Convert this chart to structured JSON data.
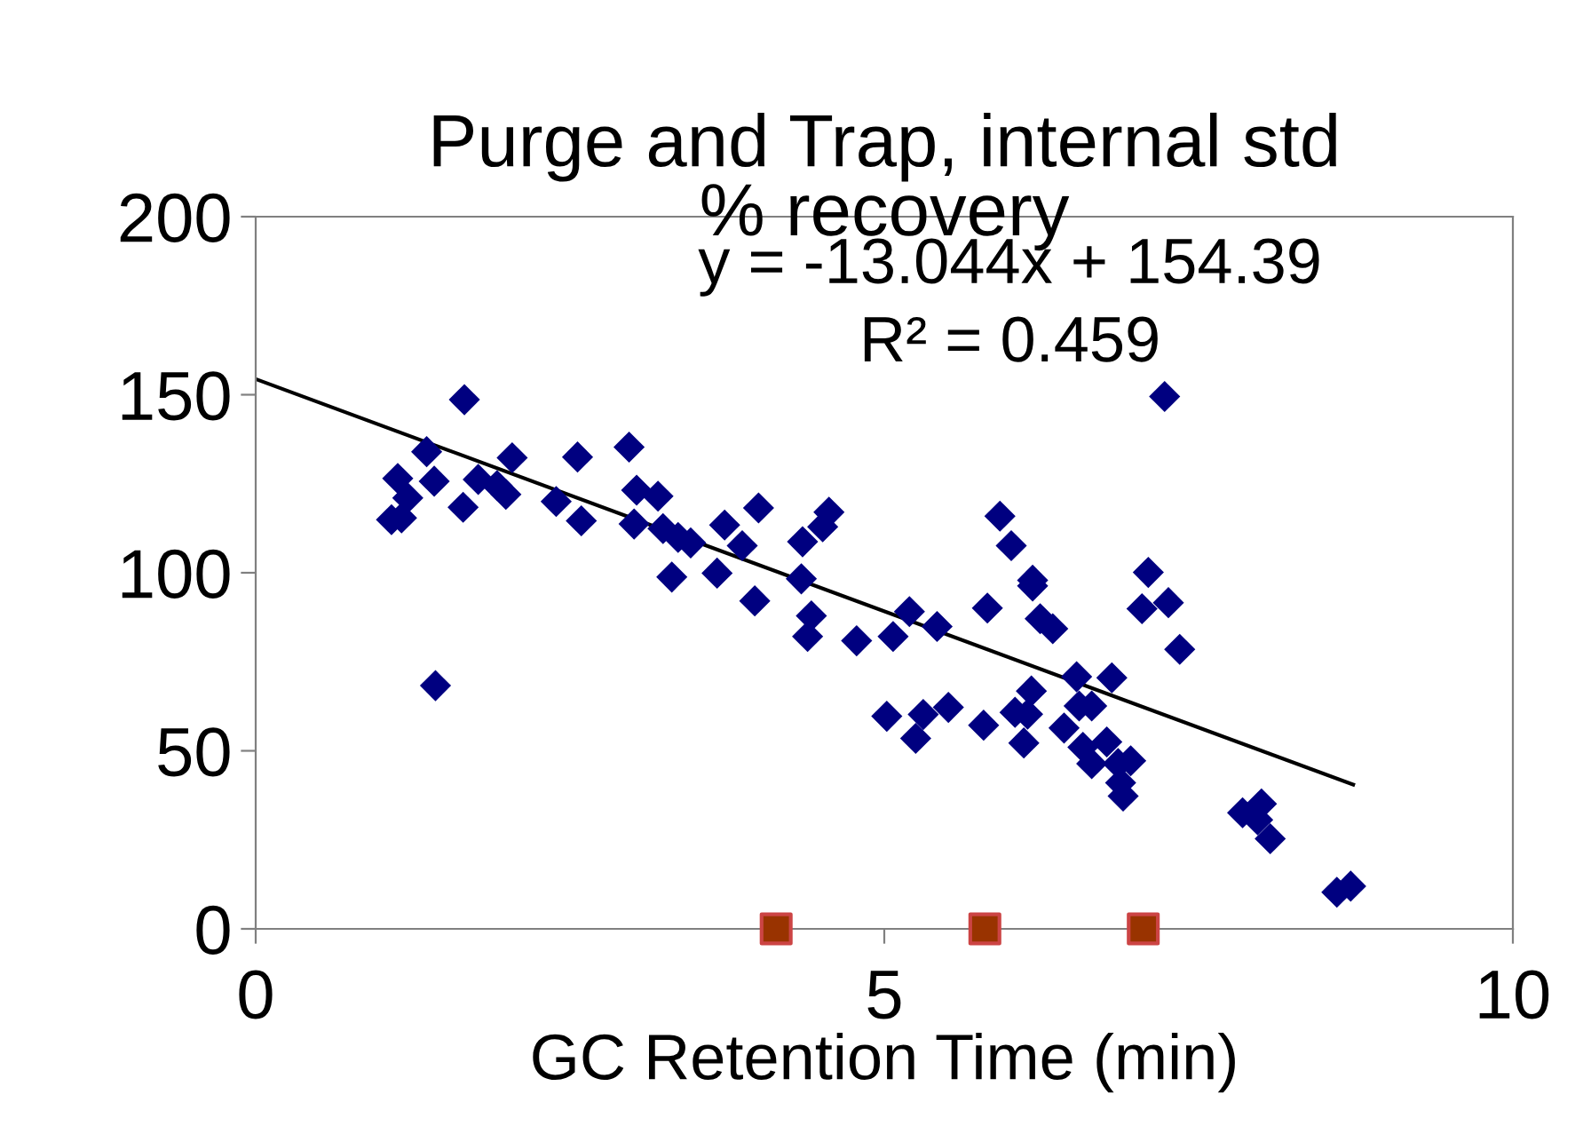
{
  "chart_data": {
    "type": "scatter",
    "title": "Purge and Trap, internal std\n% recovery",
    "xlabel": "GC Retention Time (min)",
    "xlim": [
      0,
      10
    ],
    "xticks": [
      0,
      5,
      10
    ],
    "ylim": [
      0,
      200
    ],
    "yticks": [
      0,
      50,
      100,
      150,
      200
    ],
    "grid": false,
    "annotations": [
      "y = -13.044x + 154.39",
      "R² = 0.459"
    ],
    "series": [
      {
        "marker": "diamond",
        "color": "#000080",
        "x": [
          1.66,
          1.36,
          1.13,
          1.21,
          1.08,
          1.16,
          1.42,
          1.65,
          1.77,
          1.92,
          1.99,
          2.04,
          2.39,
          2.59,
          2.56,
          2.97,
          3.03,
          3.2,
          3.01,
          3.24,
          3.36,
          3.46,
          3.31,
          3.67,
          3.73,
          3.87,
          4.0,
          3.97,
          4.35,
          4.34,
          4.42,
          4.39,
          4.56,
          4.51,
          4.78,
          1.43,
          7.23,
          5.92,
          6.01,
          6.18,
          6.18,
          5.82,
          6.24,
          6.34,
          7.1,
          7.05,
          7.26,
          7.35,
          5.2,
          5.42,
          5.07,
          6.53,
          6.81,
          6.17,
          6.55,
          6.65,
          6.04,
          6.14,
          5.51,
          5.31,
          5.02,
          5.79,
          5.25,
          6.11,
          6.43,
          6.58,
          6.77,
          6.65,
          6.86,
          6.96,
          6.88,
          6.9,
          7.85,
          8.0,
          7.97,
          8.07,
          8.6,
          8.71
        ],
        "values": [
          148.6,
          134,
          126.5,
          121,
          114.9,
          115.4,
          125.7,
          118.4,
          126.2,
          124.5,
          122,
          132.3,
          120,
          114.6,
          132.5,
          135.3,
          123.2,
          121.5,
          113.7,
          112.4,
          109.9,
          108.4,
          98.8,
          99.9,
          113.4,
          107.6,
          118.2,
          92.1,
          108.7,
          98.3,
          87.9,
          82.1,
          117,
          112.9,
          80.9,
          68.3,
          149.5,
          115.9,
          107.6,
          97.9,
          96.3,
          90.1,
          87.1,
          84.3,
          100.1,
          89.9,
          91.6,
          78.5,
          89.1,
          84.9,
          82.1,
          70.8,
          70.5,
          66.8,
          62.6,
          62.6,
          60.8,
          60.3,
          62.2,
          60.2,
          59.7,
          57.2,
          53.5,
          52.2,
          56.4,
          51,
          52.5,
          46.4,
          46.4,
          47.2,
          41,
          37.3,
          32.6,
          35.1,
          30.6,
          25.3,
          10.3,
          12
        ]
      },
      {
        "marker": "square",
        "color": "#993300",
        "x": [
          4.14,
          5.8,
          7.06
        ],
        "values": [
          0,
          0,
          0
        ]
      },
      {
        "type": "line",
        "marker": "none",
        "color": "#000000",
        "x": [
          0,
          8.73
        ],
        "values": [
          154.4,
          40.5
        ]
      }
    ]
  }
}
